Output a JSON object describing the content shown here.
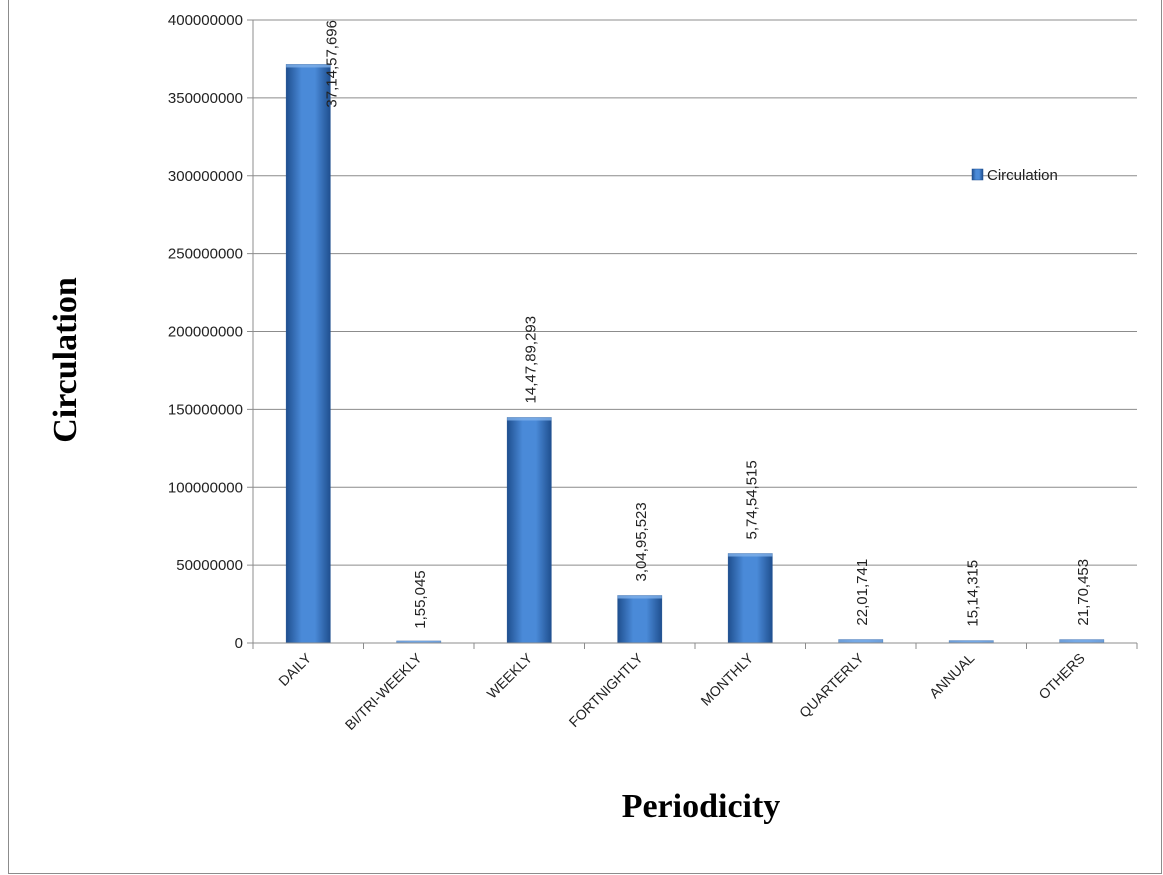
{
  "chart_data": {
    "type": "bar",
    "categories": [
      "DAILY",
      "BI/TRI-WEEKLY",
      "WEEKLY",
      "FORTNIGHTLY",
      "MONTHLY",
      "QUARTERLY",
      "ANNUAL",
      "OTHERS"
    ],
    "series": [
      {
        "name": "Circulation",
        "values": [
          371457696,
          155045,
          144789293,
          30495523,
          57454515,
          2201741,
          1514315,
          2170453
        ],
        "data_labels": [
          "37,14,57,696",
          "1,55,045",
          "14,47,89,293",
          "3,04,95,523",
          "5,74,54,515",
          "22,01,741",
          "15,14,315",
          "21,70,453"
        ],
        "color": "#3a78c9"
      }
    ],
    "title": "",
    "xlabel": "Periodicity",
    "ylabel": "Circulation",
    "ylim": [
      0,
      400000000
    ],
    "yticks": [
      0,
      50000000,
      100000000,
      150000000,
      200000000,
      250000000,
      300000000,
      350000000,
      400000000
    ],
    "ytick_labels": [
      "0",
      "50000000",
      "100000000",
      "150000000",
      "200000000",
      "250000000",
      "300000000",
      "350000000",
      "400000000"
    ],
    "grid": true,
    "legend": {
      "position": "right",
      "entries": [
        "Circulation"
      ]
    }
  }
}
